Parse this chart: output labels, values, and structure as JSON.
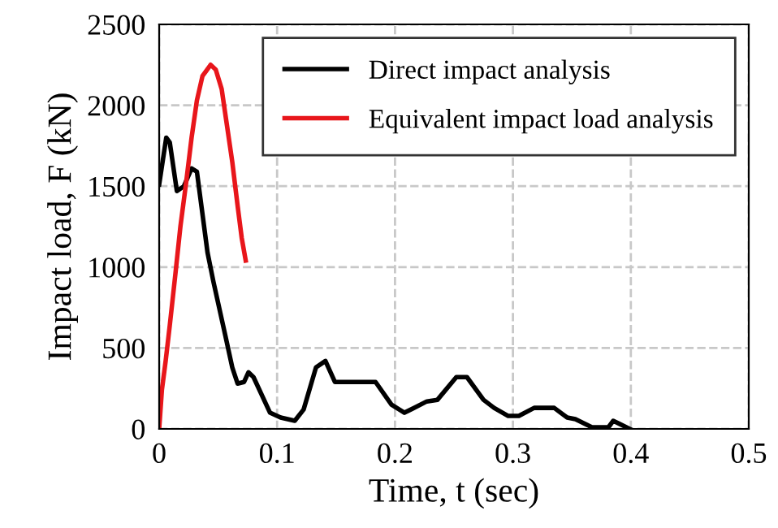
{
  "chart_data": {
    "type": "line",
    "xlabel": "Time, t (sec)",
    "ylabel": "Impact load, F (kN)",
    "xlim": [
      0,
      0.5
    ],
    "ylim": [
      0,
      2500
    ],
    "xticks": [
      0,
      0.1,
      0.2,
      0.3,
      0.4,
      0.5
    ],
    "yticks": [
      0,
      500,
      1000,
      1500,
      2000,
      2500
    ],
    "grid": true,
    "legend": "top right",
    "marker": "none",
    "line_style": "solid",
    "series": [
      {
        "name": "Direct impact analysis",
        "color": "#000000",
        "x": [
          0,
          0.006,
          0.009,
          0.015,
          0.021,
          0.0275,
          0.032,
          0.041,
          0.046,
          0.056,
          0.062,
          0.0665,
          0.072,
          0.0757,
          0.08,
          0.094,
          0.103,
          0.115,
          0.1225,
          0.133,
          0.141,
          0.149,
          0.1835,
          0.197,
          0.208,
          0.227,
          0.236,
          0.252,
          0.261,
          0.275,
          0.284,
          0.296,
          0.305,
          0.318,
          0.335,
          0.346,
          0.353,
          0.367,
          0.381,
          0.385,
          0.399
        ],
        "values": [
          1510,
          1800,
          1770,
          1470,
          1500,
          1610,
          1590,
          1090,
          910,
          580,
          380,
          280,
          290,
          350,
          320,
          100,
          70,
          50,
          120,
          380,
          420,
          290,
          290,
          150,
          100,
          170,
          180,
          320,
          320,
          180,
          130,
          80,
          80,
          130,
          130,
          70,
          60,
          10,
          10,
          50,
          0
        ]
      },
      {
        "name": "Equivalent impact load analysis",
        "color": "#e8161b",
        "x": [
          0,
          0.0023,
          0.0055,
          0.009,
          0.0138,
          0.018,
          0.023,
          0.0275,
          0.032,
          0.0367,
          0.0436,
          0.048,
          0.053,
          0.057,
          0.062,
          0.0665,
          0.07,
          0.0734
        ],
        "values": [
          0,
          240,
          420,
          640,
          960,
          1250,
          1530,
          1800,
          2030,
          2180,
          2250,
          2220,
          2100,
          1900,
          1650,
          1380,
          1180,
          1040
        ]
      }
    ]
  }
}
